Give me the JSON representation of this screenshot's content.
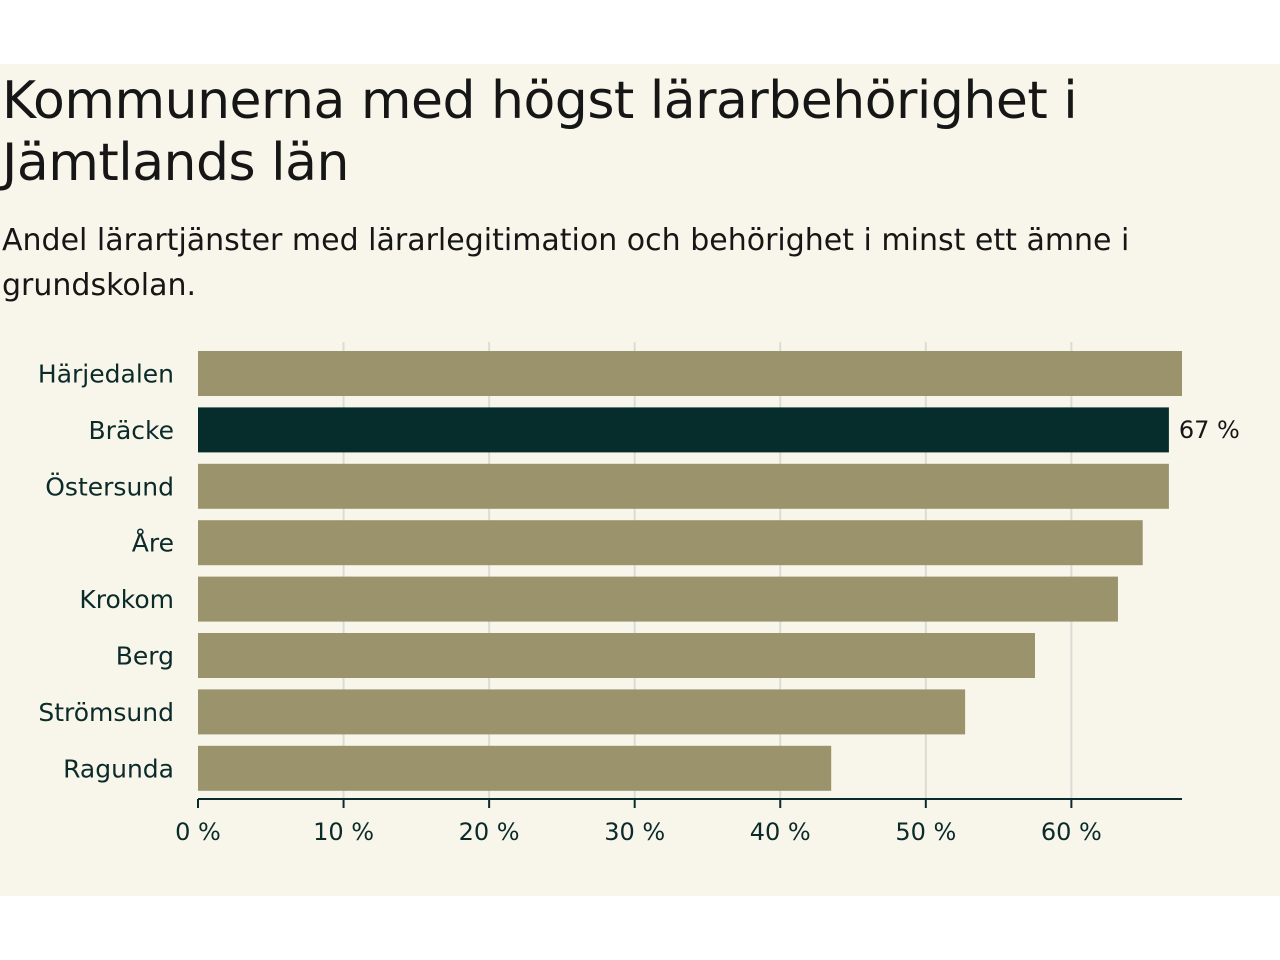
{
  "header": {
    "title": "Kommunerna med högst lärarbehörighet i Jämtlands län",
    "subtitle": "Andel lärartjänster med lärarlegitimation och behörighet i minst ett ämne i grundskolan."
  },
  "colors": {
    "bar": "#9a936c",
    "highlight": "#062c2b",
    "grid": "#dcdcd6",
    "axis": "#0b2a2a"
  },
  "chart_data": {
    "type": "bar",
    "orientation": "horizontal",
    "title": "Kommunerna med högst lärarbehörighet i Jämtlands län",
    "subtitle": "Andel lärartjänster med lärarlegitimation och behörighet i minst ett ämne i grundskolan.",
    "categories": [
      "Härjedalen",
      "Bräcke",
      "Östersund",
      "Åre",
      "Krokom",
      "Berg",
      "Strömsund",
      "Ragunda"
    ],
    "values": [
      67.6,
      66.7,
      66.7,
      64.9,
      63.2,
      57.5,
      52.7,
      43.5
    ],
    "highlight_index": 1,
    "data_labels": [
      {
        "index": 1,
        "text": "67 %"
      }
    ],
    "xlim": [
      0,
      67.6
    ],
    "xticks": [
      0,
      10,
      20,
      30,
      40,
      50,
      60
    ],
    "xtick_labels": [
      "0 %",
      "10 %",
      "20 %",
      "30 %",
      "40 %",
      "50 %",
      "60 %"
    ],
    "grid": true,
    "legend": "none"
  }
}
